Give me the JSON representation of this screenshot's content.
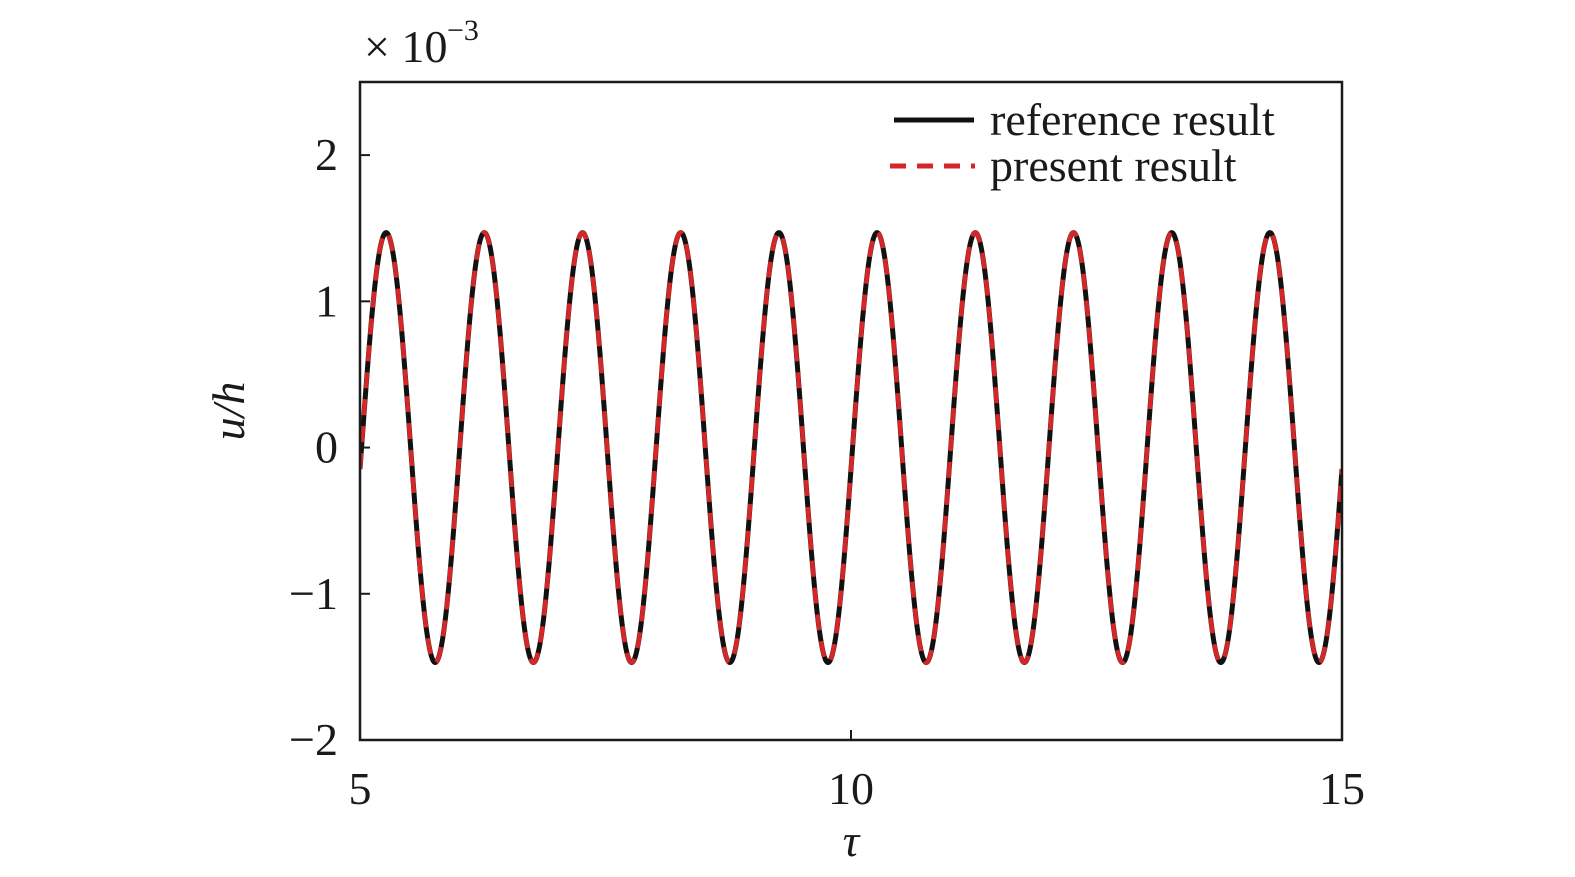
{
  "chart_data": {
    "type": "line",
    "xlabel": "τ",
    "ylabel": "u/h",
    "y_exponent": {
      "prefix": "× 10",
      "power": "−3"
    },
    "xlim": [
      5,
      15
    ],
    "ylim": [
      -2,
      2.5
    ],
    "x_ticks": [
      5,
      10,
      15
    ],
    "x_tick_labels": [
      "5",
      "10",
      "15"
    ],
    "y_ticks": [
      -2,
      -1,
      0,
      1,
      2
    ],
    "y_tick_labels": [
      "−2",
      "−1",
      "0",
      "1",
      "2"
    ],
    "grid": false,
    "legend_position": "top-right",
    "series": [
      {
        "name": "reference result",
        "style": "solid",
        "color": "#111111",
        "function": {
          "form": "amplitude*sin(2*pi*frequency*(x - x0) + phase)",
          "amplitude": 1.47,
          "frequency": 1.0,
          "x0": 5.0,
          "phase": -0.1,
          "x_start": 5.0,
          "x_end": 15.0
        }
      },
      {
        "name": "present result",
        "style": "dashed",
        "color": "#d62728",
        "function": {
          "form": "amplitude*sin(2*pi*frequency*(x - x0) + phase)",
          "amplitude": 1.47,
          "frequency": 1.0,
          "x0": 5.0,
          "phase": -0.1,
          "x_start": 5.0,
          "x_end": 15.0
        }
      }
    ]
  }
}
